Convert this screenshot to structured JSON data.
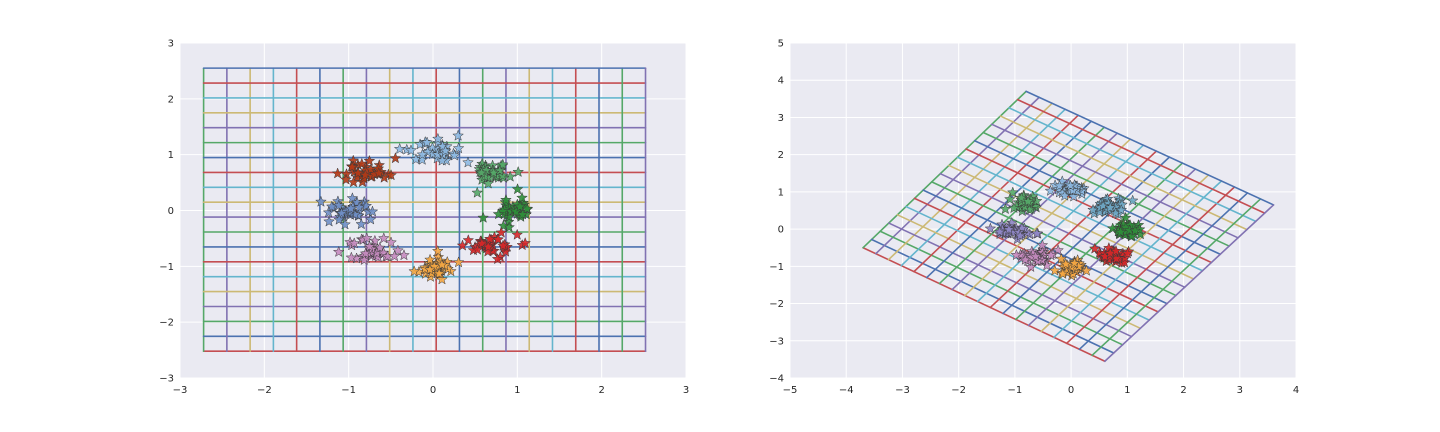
{
  "chart_data": [
    {
      "type": "scatter",
      "title": "",
      "xlabel": "",
      "ylabel": "",
      "xlim": [
        -3,
        3
      ],
      "ylim": [
        -3,
        3
      ],
      "xticks": [
        "−3",
        "−2",
        "−1",
        "0",
        "1",
        "2",
        "3"
      ],
      "yticks": [
        "−3",
        "−2",
        "−1",
        "0",
        "1",
        "2",
        "3"
      ],
      "grid": true,
      "background": "#eaeaf2",
      "marker": "star",
      "mesh": {
        "description": "regular grid of lines",
        "x_range": [
          -2.72,
          2.52
        ],
        "y_range": [
          -2.52,
          2.55
        ],
        "lines_per_axis": 20,
        "line_colors": [
          "#c44e52",
          "#4c72b0",
          "#55a868",
          "#8172b2",
          "#ccb974",
          "#64b5cd"
        ]
      },
      "clusters": [
        {
          "color": "#8db9e2",
          "center": [
            0.0,
            1.05
          ],
          "spread": [
            0.18,
            0.12
          ],
          "count": 40
        },
        {
          "color": "#55a868",
          "center": [
            0.72,
            0.7
          ],
          "spread": [
            0.13,
            0.11
          ],
          "count": 40
        },
        {
          "color": "#2f8f3a",
          "center": [
            0.95,
            0.0
          ],
          "spread": [
            0.13,
            0.13
          ],
          "count": 40
        },
        {
          "color": "#d62728",
          "center": [
            0.68,
            -0.65
          ],
          "spread": [
            0.15,
            0.1
          ],
          "count": 40
        },
        {
          "color": "#f5a742",
          "center": [
            0.02,
            -1.02
          ],
          "spread": [
            0.13,
            0.1
          ],
          "count": 40
        },
        {
          "color": "#c58bbf",
          "center": [
            -0.72,
            -0.72
          ],
          "spread": [
            0.16,
            0.12
          ],
          "count": 40
        },
        {
          "color": "#6f8fc6",
          "center": [
            -1.02,
            0.0
          ],
          "spread": [
            0.15,
            0.1
          ],
          "count": 40
        },
        {
          "color": "#b23a16",
          "center": [
            -0.78,
            0.67
          ],
          "spread": [
            0.14,
            0.11
          ],
          "count": 40
        }
      ]
    },
    {
      "type": "scatter",
      "title": "",
      "xlabel": "",
      "ylabel": "",
      "xlim": [
        -5,
        4
      ],
      "ylim": [
        -4,
        5
      ],
      "xticks": [
        "−5",
        "−4",
        "−3",
        "−2",
        "−1",
        "0",
        "1",
        "2",
        "3",
        "4"
      ],
      "yticks": [
        "−4",
        "−3",
        "−2",
        "−1",
        "0",
        "1",
        "2",
        "3",
        "4",
        "5"
      ],
      "grid": true,
      "background": "#eaeaf2",
      "marker": "star",
      "mesh": {
        "description": "grid of lines after a linear transformation",
        "corners": [
          [
            -3.7,
            -0.5
          ],
          [
            -0.8,
            3.7
          ],
          [
            3.6,
            0.65
          ],
          [
            0.6,
            -3.55
          ]
        ],
        "lines_per_axis": 20,
        "line_colors": [
          "#c44e52",
          "#4c72b0",
          "#55a868",
          "#8172b2",
          "#ccb974",
          "#64b5cd"
        ]
      },
      "clusters": [
        {
          "color": "#8db9e2",
          "center": [
            0.0,
            1.05
          ],
          "spread": [
            0.15,
            0.1
          ],
          "count": 40
        },
        {
          "color": "#6fa9c6",
          "center": [
            0.68,
            0.62
          ],
          "spread": [
            0.14,
            0.1
          ],
          "count": 40
        },
        {
          "color": "#2f8f3a",
          "center": [
            1.0,
            0.0
          ],
          "spread": [
            0.13,
            0.12
          ],
          "count": 40
        },
        {
          "color": "#d62728",
          "center": [
            0.7,
            -0.72
          ],
          "spread": [
            0.14,
            0.1
          ],
          "count": 40
        },
        {
          "color": "#f5a742",
          "center": [
            0.0,
            -1.02
          ],
          "spread": [
            0.13,
            0.1
          ],
          "count": 40
        },
        {
          "color": "#c58bbf",
          "center": [
            -0.62,
            -0.72
          ],
          "spread": [
            0.15,
            0.11
          ],
          "count": 40
        },
        {
          "color": "#8e86c4",
          "center": [
            -1.05,
            -0.05
          ],
          "spread": [
            0.15,
            0.1
          ],
          "count": 40
        },
        {
          "color": "#55a868",
          "center": [
            -0.8,
            0.68
          ],
          "spread": [
            0.13,
            0.11
          ],
          "count": 40
        }
      ]
    }
  ]
}
